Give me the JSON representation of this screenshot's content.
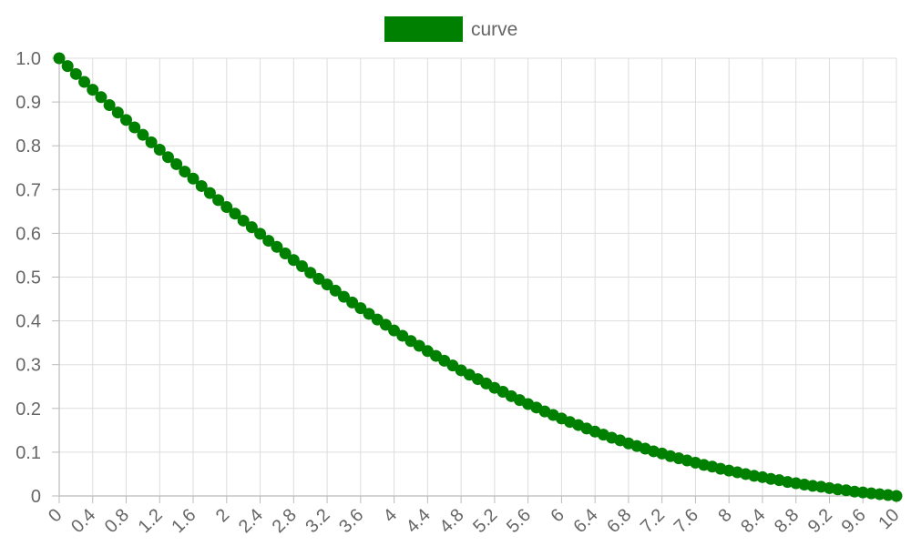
{
  "chart_data": {
    "type": "line",
    "legend": {
      "position": "top-center"
    },
    "grid": true,
    "xlim": [
      0,
      10
    ],
    "ylim": [
      0,
      1
    ],
    "x_tick_labels": [
      "0",
      "0.4",
      "0.8",
      "1.2",
      "1.6",
      "2",
      "2.4",
      "2.8",
      "3.2",
      "3.6",
      "4",
      "4.4",
      "4.8",
      "5.2",
      "5.6",
      "6",
      "6.4",
      "6.8",
      "7.2",
      "7.6",
      "8",
      "8.4",
      "8.8",
      "9.2",
      "9.6",
      "10"
    ],
    "y_tick_labels": [
      "0",
      "0.1",
      "0.2",
      "0.3",
      "0.4",
      "0.5",
      "0.6",
      "0.7",
      "0.8",
      "0.9",
      "1.0"
    ],
    "series": [
      {
        "name": "curve",
        "color": "#008000",
        "x": [
          0,
          0.1,
          0.2,
          0.3,
          0.4,
          0.5,
          0.6,
          0.7,
          0.8,
          0.9,
          1,
          1.1,
          1.2,
          1.3,
          1.4,
          1.5,
          1.6,
          1.7,
          1.8,
          1.9,
          2,
          2.1,
          2.2,
          2.3,
          2.4,
          2.5,
          2.6,
          2.7,
          2.8,
          2.9,
          3,
          3.1,
          3.2,
          3.3,
          3.4,
          3.5,
          3.6,
          3.7,
          3.8,
          3.9,
          4,
          4.1,
          4.2,
          4.3,
          4.4,
          4.5,
          4.6,
          4.7,
          4.8,
          4.9,
          5,
          5.1,
          5.2,
          5.3,
          5.4,
          5.5,
          5.6,
          5.7,
          5.8,
          5.9,
          6,
          6.1,
          6.2,
          6.3,
          6.4,
          6.5,
          6.6,
          6.7,
          6.8,
          6.9,
          7,
          7.1,
          7.2,
          7.3,
          7.4,
          7.5,
          7.6,
          7.7,
          7.8,
          7.9,
          8,
          8.1,
          8.2,
          8.3,
          8.4,
          8.5,
          8.6,
          8.7,
          8.8,
          8.9,
          9,
          9.1,
          9.2,
          9.3,
          9.4,
          9.5,
          9.6,
          9.7,
          9.8,
          9.9,
          10
        ],
        "y": [
          1,
          0.982,
          0.964,
          0.946,
          0.928,
          0.911,
          0.893,
          0.876,
          0.859,
          0.842,
          0.825,
          0.808,
          0.791,
          0.774,
          0.758,
          0.741,
          0.725,
          0.708,
          0.692,
          0.676,
          0.66,
          0.645,
          0.629,
          0.614,
          0.599,
          0.583,
          0.569,
          0.554,
          0.539,
          0.525,
          0.51,
          0.496,
          0.483,
          0.469,
          0.455,
          0.442,
          0.429,
          0.416,
          0.403,
          0.391,
          0.378,
          0.366,
          0.354,
          0.343,
          0.331,
          0.32,
          0.309,
          0.298,
          0.287,
          0.277,
          0.267,
          0.257,
          0.247,
          0.238,
          0.228,
          0.219,
          0.21,
          0.202,
          0.193,
          0.185,
          0.177,
          0.169,
          0.162,
          0.154,
          0.147,
          0.14,
          0.133,
          0.127,
          0.12,
          0.114,
          0.108,
          0.102,
          0.097,
          0.091,
          0.086,
          0.081,
          0.076,
          0.071,
          0.067,
          0.062,
          0.058,
          0.054,
          0.05,
          0.046,
          0.043,
          0.039,
          0.036,
          0.032,
          0.029,
          0.026,
          0.023,
          0.021,
          0.018,
          0.015,
          0.013,
          0.01,
          0.008,
          0.006,
          0.004,
          0.002,
          0
        ]
      }
    ]
  }
}
